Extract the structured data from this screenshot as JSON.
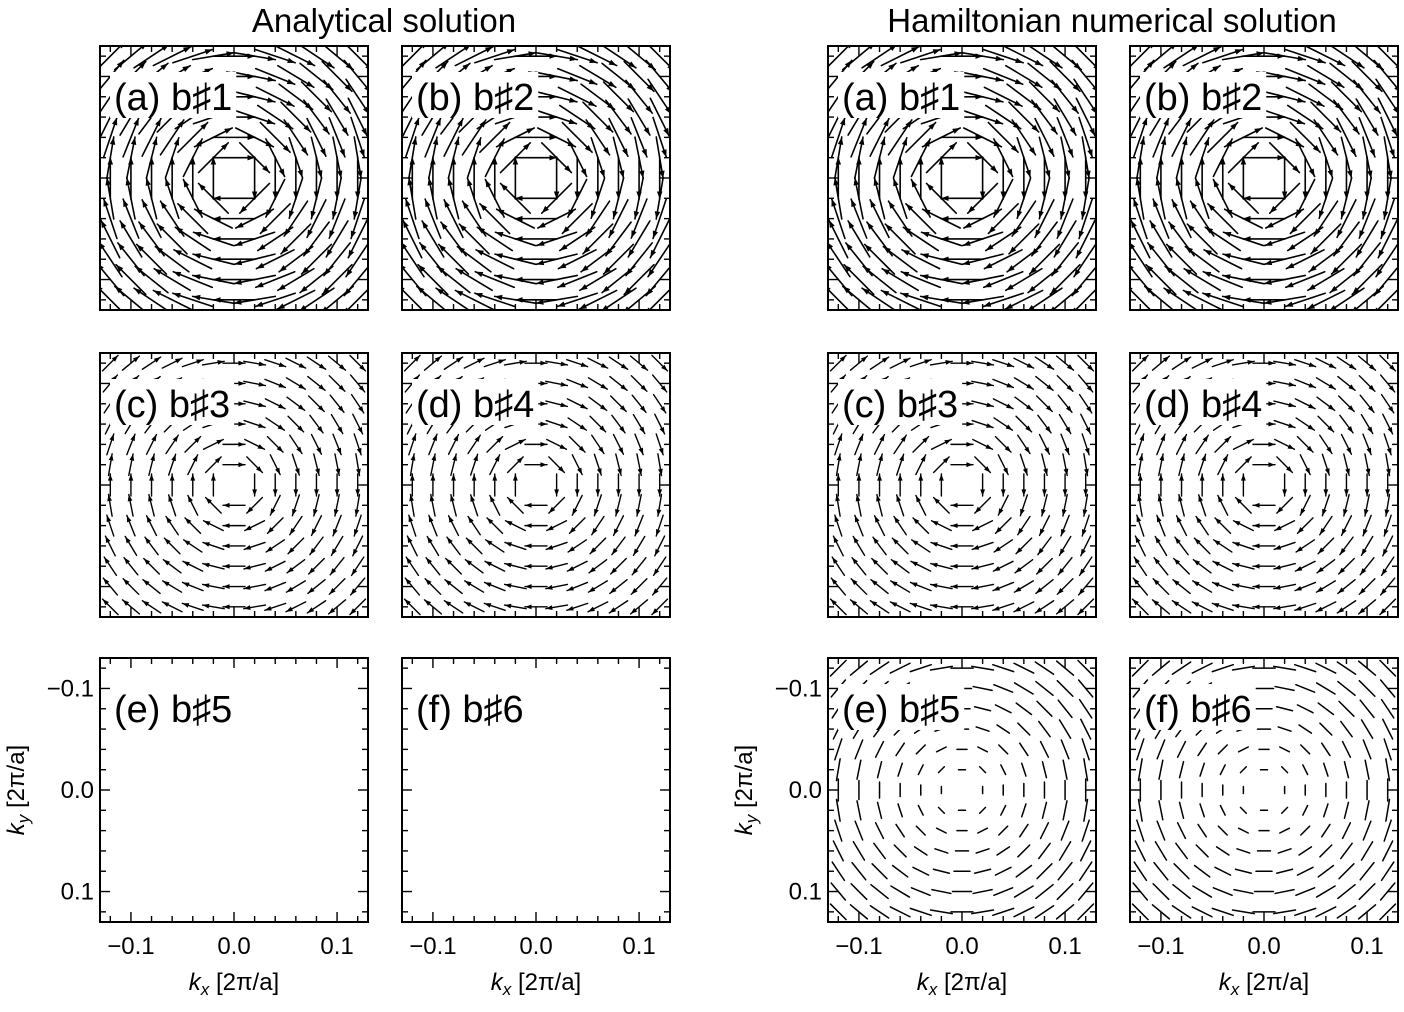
{
  "titles": {
    "analytical": "Analytical solution",
    "numerical": "Hamiltonian numerical solution"
  },
  "axes": {
    "xlabel_main": "k",
    "xlabel_sub": "x",
    "xlabel_unit": " [2π/a]",
    "ylabel_main": "k",
    "ylabel_sub": "y",
    "ylabel_unit": " [2π/a]",
    "x_ticks": [
      "−0.1",
      "0.0",
      "0.1"
    ],
    "y_ticks": [
      "−0.1",
      "0.0",
      "0.1"
    ]
  },
  "chart_data": [
    {
      "type": "quiver",
      "group": "Analytical solution",
      "label": "(a) b♯1",
      "pattern": "rotation",
      "magnitude": 1.0,
      "xlim": [
        -0.13,
        0.13
      ],
      "ylim": [
        -0.13,
        0.13
      ]
    },
    {
      "type": "quiver",
      "group": "Analytical solution",
      "label": "(b) b♯2",
      "pattern": "rotation",
      "magnitude": 1.0,
      "xlim": [
        -0.13,
        0.13
      ],
      "ylim": [
        -0.13,
        0.13
      ]
    },
    {
      "type": "quiver",
      "group": "Analytical solution",
      "label": "(c) b♯3",
      "pattern": "rotation",
      "magnitude": 0.55,
      "xlim": [
        -0.13,
        0.13
      ],
      "ylim": [
        -0.13,
        0.13
      ]
    },
    {
      "type": "quiver",
      "group": "Analytical solution",
      "label": "(d) b♯4",
      "pattern": "rotation",
      "magnitude": 0.55,
      "xlim": [
        -0.13,
        0.13
      ],
      "ylim": [
        -0.13,
        0.13
      ]
    },
    {
      "type": "quiver",
      "group": "Analytical solution",
      "label": "(e) b♯5",
      "pattern": "empty",
      "magnitude": 0,
      "xlim": [
        -0.13,
        0.13
      ],
      "ylim": [
        -0.13,
        0.13
      ]
    },
    {
      "type": "quiver",
      "group": "Analytical solution",
      "label": "(f) b♯6",
      "pattern": "empty",
      "magnitude": 0,
      "xlim": [
        -0.13,
        0.13
      ],
      "ylim": [
        -0.13,
        0.13
      ]
    },
    {
      "type": "quiver",
      "group": "Hamiltonian numerical solution",
      "label": "(a) b♯1",
      "pattern": "rotation",
      "magnitude": 1.0,
      "xlim": [
        -0.13,
        0.13
      ],
      "ylim": [
        -0.13,
        0.13
      ]
    },
    {
      "type": "quiver",
      "group": "Hamiltonian numerical solution",
      "label": "(b) b♯2",
      "pattern": "rotation",
      "magnitude": 1.0,
      "xlim": [
        -0.13,
        0.13
      ],
      "ylim": [
        -0.13,
        0.13
      ]
    },
    {
      "type": "quiver",
      "group": "Hamiltonian numerical solution",
      "label": "(c) b♯3",
      "pattern": "rotation",
      "magnitude": 0.55,
      "xlim": [
        -0.13,
        0.13
      ],
      "ylim": [
        -0.13,
        0.13
      ]
    },
    {
      "type": "quiver",
      "group": "Hamiltonian numerical solution",
      "label": "(d) b♯4",
      "pattern": "rotation",
      "magnitude": 0.55,
      "xlim": [
        -0.13,
        0.13
      ],
      "ylim": [
        -0.13,
        0.13
      ]
    },
    {
      "type": "quiver",
      "group": "Hamiltonian numerical solution",
      "label": "(e) b♯5",
      "pattern": "radial-lines",
      "magnitude": 0.35,
      "xlim": [
        -0.13,
        0.13
      ],
      "ylim": [
        -0.13,
        0.13
      ]
    },
    {
      "type": "quiver",
      "group": "Hamiltonian numerical solution",
      "label": "(f) b♯6",
      "pattern": "radial-lines",
      "magnitude": 0.35,
      "xlim": [
        -0.13,
        0.13
      ],
      "ylim": [
        -0.13,
        0.13
      ]
    }
  ]
}
